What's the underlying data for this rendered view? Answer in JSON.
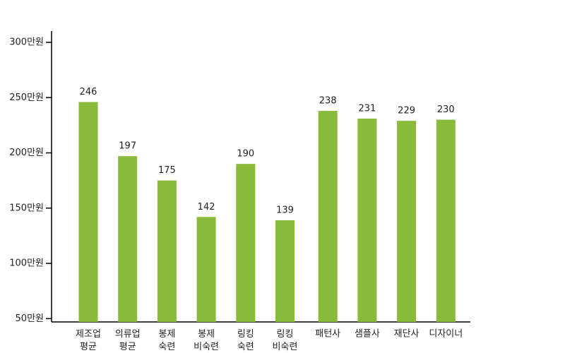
{
  "chart_data": {
    "type": "bar",
    "categories": [
      "제조업\n평균",
      "의류업\n평균",
      "봉제\n숙련",
      "봉제\n비숙련",
      "링킹\n숙련",
      "링킹\n비숙련",
      "패턴사",
      "샘플사",
      "재단사",
      "디자이너"
    ],
    "values": [
      246,
      197,
      175,
      142,
      190,
      139,
      238,
      231,
      229,
      230
    ],
    "color": "#8aba3a",
    "ylim": [
      47,
      300
    ],
    "yticks": [
      {
        "value": 50,
        "label": "50만원"
      },
      {
        "value": 100,
        "label": "100만원"
      },
      {
        "value": 150,
        "label": "150만원"
      },
      {
        "value": 200,
        "label": "200만원"
      },
      {
        "value": 250,
        "label": "250만원"
      },
      {
        "value": 300,
        "label": "300만원"
      }
    ],
    "grid": false
  }
}
